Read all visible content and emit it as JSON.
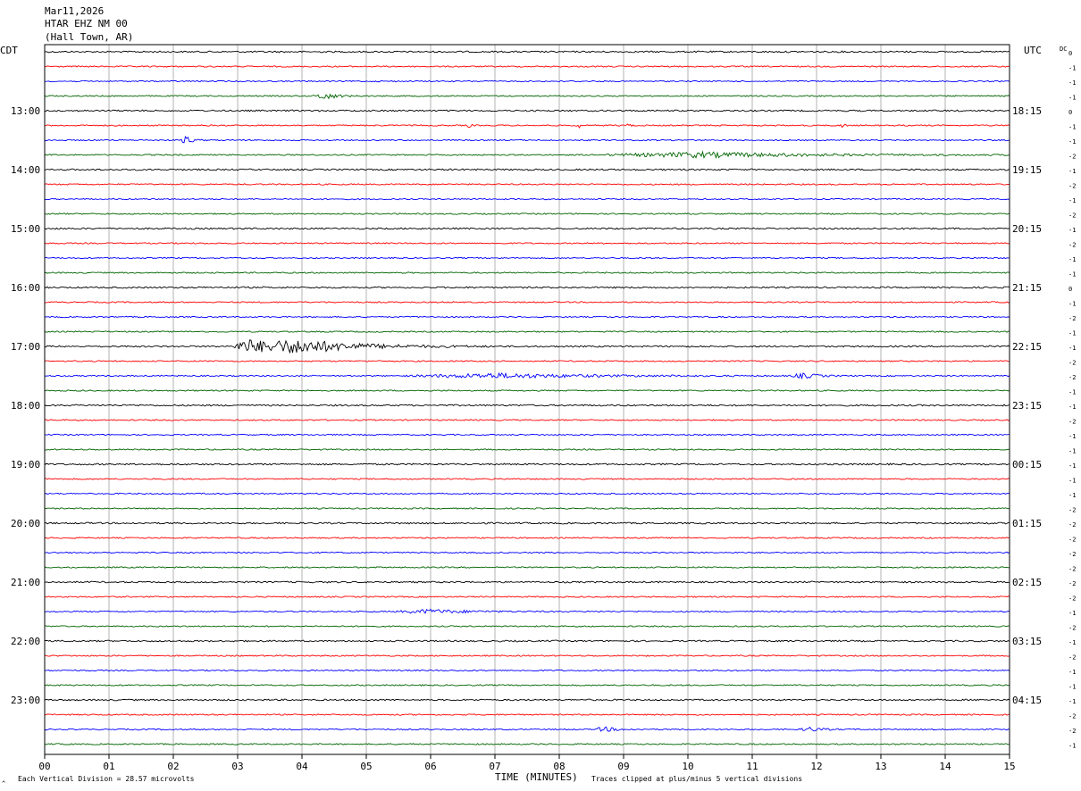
{
  "header": {
    "date": "Mar11,2026",
    "station": "HTAR EHZ NM 00",
    "location": "(Hall Town, AR)"
  },
  "left_timezone": "CDT",
  "right_timezone": "UTC",
  "dc_label": "DC",
  "footer": {
    "scale_note": "Each Vertical Division =   28.57 microvolts",
    "xlabel": "TIME (MINUTES)",
    "clip_note": "Traces clipped at plus/minus 5 vertical divisions",
    "corner_mark": "^"
  },
  "chart_data": {
    "type": "line",
    "title": "",
    "xlabel": "TIME (MINUTES)",
    "xlim": [
      0,
      15
    ],
    "x_ticks": [
      "00",
      "01",
      "02",
      "03",
      "04",
      "05",
      "06",
      "07",
      "08",
      "09",
      "10",
      "11",
      "12",
      "13",
      "14",
      "15"
    ],
    "grid": true,
    "rows": 48,
    "trace_colors": [
      "#000000",
      "#ff0000",
      "#0000ff",
      "#006400"
    ],
    "left_hour_labels": [
      {
        "row": 4,
        "label": "13:00"
      },
      {
        "row": 8,
        "label": "14:00"
      },
      {
        "row": 12,
        "label": "15:00"
      },
      {
        "row": 16,
        "label": "16:00"
      },
      {
        "row": 20,
        "label": "17:00"
      },
      {
        "row": 24,
        "label": "18:00"
      },
      {
        "row": 28,
        "label": "19:00"
      },
      {
        "row": 32,
        "label": "20:00"
      },
      {
        "row": 36,
        "label": "21:00"
      },
      {
        "row": 40,
        "label": "22:00"
      },
      {
        "row": 44,
        "label": "23:00"
      }
    ],
    "right_hour_labels": [
      {
        "row": 4,
        "label": "18:15"
      },
      {
        "row": 8,
        "label": "19:15"
      },
      {
        "row": 12,
        "label": "20:15"
      },
      {
        "row": 16,
        "label": "21:15"
      },
      {
        "row": 20,
        "label": "22:15"
      },
      {
        "row": 24,
        "label": "23:15"
      },
      {
        "row": 28,
        "label": "00:15"
      },
      {
        "row": 32,
        "label": "01:15"
      },
      {
        "row": 36,
        "label": "02:15"
      },
      {
        "row": 40,
        "label": "03:15"
      },
      {
        "row": 44,
        "label": "04:15"
      }
    ],
    "dc_offsets": [
      "0",
      "-1",
      "-1",
      "-1",
      "0",
      "-1",
      "-1",
      "-2",
      "-1",
      "-2",
      "-1",
      "-2",
      "-1",
      "-2",
      "-1",
      "-1",
      "0",
      "-1",
      "-2",
      "-1",
      "-1",
      "-2",
      "-2",
      "-1",
      "-1",
      "-2",
      "-1",
      "-1",
      "-1",
      "-1",
      "-1",
      "-2",
      "-2",
      "-2",
      "-2",
      "-2",
      "-2",
      "-2",
      "-1",
      "-2",
      "-1",
      "-2",
      "-1",
      "-1",
      "-1",
      "-2",
      "-2",
      "-1"
    ],
    "events": [
      {
        "row": 3,
        "minute": 4.35,
        "amplitude": 2.5,
        "width_min": 0.3
      },
      {
        "row": 5,
        "minute": 6.6,
        "amplitude": 1.8,
        "width_min": 0.05
      },
      {
        "row": 5,
        "minute": 8.3,
        "amplitude": 3.0,
        "width_min": 0.05
      },
      {
        "row": 5,
        "minute": 9.05,
        "amplitude": 2.5,
        "width_min": 0.05
      },
      {
        "row": 5,
        "minute": 12.4,
        "amplitude": 1.8,
        "width_min": 0.05
      },
      {
        "row": 6,
        "minute": 2.2,
        "amplitude": 3.0,
        "width_min": 0.15
      },
      {
        "row": 7,
        "minute": 10.2,
        "amplitude": 1.8,
        "width_min": 2.8
      },
      {
        "row": 20,
        "minute": 3.15,
        "amplitude": 5.0,
        "width_min": 0.4
      },
      {
        "row": 20,
        "minute": 3.95,
        "amplitude": 5.0,
        "width_min": 1.5
      },
      {
        "row": 22,
        "minute": 7.0,
        "amplitude": 1.6,
        "width_min": 2.5
      },
      {
        "row": 22,
        "minute": 11.8,
        "amplitude": 1.6,
        "width_min": 0.4
      },
      {
        "row": 38,
        "minute": 6.0,
        "amplitude": 1.4,
        "width_min": 1.0
      },
      {
        "row": 46,
        "minute": 8.7,
        "amplitude": 1.6,
        "width_min": 0.3
      },
      {
        "row": 46,
        "minute": 11.9,
        "amplitude": 1.4,
        "width_min": 0.3
      }
    ]
  }
}
